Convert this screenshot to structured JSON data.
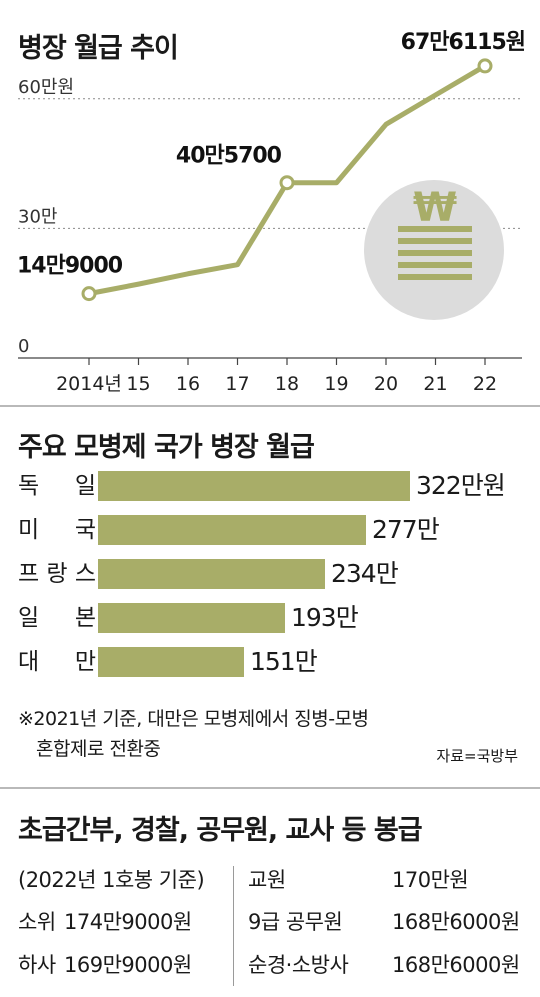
{
  "chart_data": [
    {
      "type": "line",
      "title": "병장 월급 추이",
      "x": [
        "2014년",
        "15",
        "16",
        "17",
        "18",
        "19",
        "20",
        "21",
        "22"
      ],
      "values": [
        14.9,
        17.1,
        19.5,
        21.6,
        40.57,
        40.57,
        54.09,
        60.88,
        67.6115
      ],
      "ylim": [
        0,
        70
      ],
      "yticks": [
        {
          "value": 0,
          "label": "0"
        },
        {
          "value": 30,
          "label": "30만"
        },
        {
          "value": 60,
          "label": "60만원"
        }
      ],
      "annotations": [
        {
          "index": 0,
          "label": "14만9000"
        },
        {
          "index": 4,
          "label": "40만5700"
        },
        {
          "index": 8,
          "label": "67만6115원"
        }
      ],
      "line_color": "#a8ad68"
    },
    {
      "type": "bar",
      "title": "주요 모병제 국가 병장 월급",
      "categories": [
        "독일",
        "미국",
        "프랑스",
        "일본",
        "대만"
      ],
      "values": [
        322,
        277,
        234,
        193,
        151
      ],
      "value_labels": [
        "322만원",
        "277만",
        "234만",
        "193만",
        "151만"
      ],
      "bar_color": "#a8ad68"
    }
  ],
  "chart1_icon": "won-coin-stack-icon",
  "note": {
    "line1": "※2021년 기준, 대만은 모병제에서 징병-모병",
    "line2": "혼합제로 전환중",
    "source": "자료=국방부"
  },
  "pay_table": {
    "title": "초급간부, 경찰, 공무원, 교사 등 봉급",
    "basis": "(2022년 1호봉 기준)",
    "left": [
      {
        "rank": "소위",
        "amount": "174만9000원"
      },
      {
        "rank": "하사",
        "amount": "169만9000원"
      }
    ],
    "right": [
      {
        "rank": "교원",
        "amount": "170만원"
      },
      {
        "rank": "9급 공무원",
        "amount": "168만6000원"
      },
      {
        "rank": "순경·소방사",
        "amount": "168만6000원"
      }
    ]
  },
  "colors": {
    "accent": "#a8ad68",
    "circle": "#dcdcdc",
    "grid": "#8a8a8a",
    "rule": "#b9b9b9"
  }
}
